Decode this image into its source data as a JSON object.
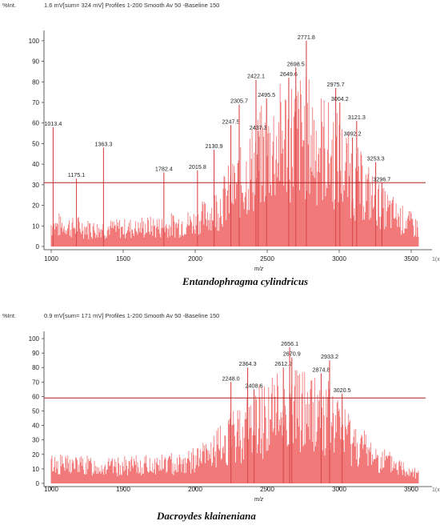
{
  "chart_data": [
    {
      "type": "line",
      "header": {
        "yunit": "%Int.",
        "info": "1.6 mV[sum= 324 mV]  Profiles 1-200 Smooth Av 50 -Baseline 150"
      },
      "xlabel": "m/z",
      "xlim": [
        950,
        3600
      ],
      "ylim": [
        0,
        105
      ],
      "x_ticks": [
        1000,
        1500,
        2000,
        2500,
        3000,
        3500
      ],
      "y_ticks": [
        0,
        10,
        20,
        30,
        40,
        50,
        60,
        70,
        80,
        90,
        100
      ],
      "axis_end_label": "1(x",
      "threshold_line": 31,
      "series_color": "#f06a6a",
      "threshold_color": "#b22222",
      "caption": "Entandophragma cylindricus",
      "envelope": {
        "x": [
          1000,
          1200,
          1400,
          1600,
          1800,
          2000,
          2100,
          2200,
          2300,
          2400,
          2500,
          2600,
          2700,
          2800,
          2900,
          3000,
          3100,
          3200,
          3300,
          3400,
          3550
        ],
        "y": [
          14,
          12,
          11,
          12,
          13,
          16,
          22,
          32,
          42,
          55,
          66,
          74,
          78,
          75,
          68,
          58,
          47,
          36,
          26,
          20,
          12
        ]
      },
      "peaks": [
        {
          "x": 1013.4,
          "y": 58,
          "label": "1013.4"
        },
        {
          "x": 1175.1,
          "y": 33,
          "label": "1175.1"
        },
        {
          "x": 1363.3,
          "y": 48,
          "label": "1363.3"
        },
        {
          "x": 1782.4,
          "y": 36,
          "label": "1782.4"
        },
        {
          "x": 2015.8,
          "y": 37,
          "label": "2015.8"
        },
        {
          "x": 2130.9,
          "y": 47,
          "label": "2130.9"
        },
        {
          "x": 2247.5,
          "y": 59,
          "label": "2247.5"
        },
        {
          "x": 2305.7,
          "y": 69,
          "label": "2305.7"
        },
        {
          "x": 2422.1,
          "y": 81,
          "label": "2422.1"
        },
        {
          "x": 2437.3,
          "y": 56,
          "label": "2437.3"
        },
        {
          "x": 2495.5,
          "y": 72,
          "label": "2495.5"
        },
        {
          "x": 2649.6,
          "y": 82,
          "label": "2649.6"
        },
        {
          "x": 2698.5,
          "y": 87,
          "label": "2698.5"
        },
        {
          "x": 2771.8,
          "y": 100,
          "label": "2771.8"
        },
        {
          "x": 2975.7,
          "y": 77,
          "label": "2975.7"
        },
        {
          "x": 3004.2,
          "y": 70,
          "label": "3004.2"
        },
        {
          "x": 3092.2,
          "y": 53,
          "label": "3092.2"
        },
        {
          "x": 3121.3,
          "y": 61,
          "label": "3121.3"
        },
        {
          "x": 3253.3,
          "y": 41,
          "label": "3253.3"
        },
        {
          "x": 3296.7,
          "y": 31,
          "label": "3296.7"
        }
      ]
    },
    {
      "type": "line",
      "header": {
        "yunit": "%Int.",
        "info": "0.9 mV[sum= 171 mV]  Profiles 1-200 Smooth Av 50 -Baseline 150"
      },
      "xlabel": "m/z",
      "xlim": [
        950,
        3600
      ],
      "ylim": [
        0,
        105
      ],
      "x_ticks": [
        1000,
        1500,
        2000,
        2500,
        3000,
        3500
      ],
      "y_ticks": [
        0,
        10,
        20,
        30,
        40,
        50,
        60,
        70,
        80,
        90,
        100
      ],
      "axis_end_label": "1(x",
      "threshold_line": 59,
      "series_color": "#f06a6a",
      "threshold_color": "#b22222",
      "caption": "Dacroydes klaineniana",
      "envelope": {
        "x": [
          1000,
          1200,
          1400,
          1600,
          1800,
          2000,
          2100,
          2200,
          2300,
          2400,
          2500,
          2600,
          2700,
          2800,
          2900,
          3000,
          3100,
          3200,
          3300,
          3400,
          3550
        ],
        "y": [
          18,
          17,
          15,
          16,
          18,
          22,
          28,
          38,
          50,
          60,
          68,
          72,
          74,
          72,
          66,
          55,
          42,
          30,
          22,
          16,
          10
        ]
      },
      "peaks": [
        {
          "x": 2248.0,
          "y": 70,
          "label": "2248.0"
        },
        {
          "x": 2364.3,
          "y": 80,
          "label": "2364.3"
        },
        {
          "x": 2408.6,
          "y": 65,
          "label": "2408.6"
        },
        {
          "x": 2612.2,
          "y": 80,
          "label": "2612.2"
        },
        {
          "x": 2656.1,
          "y": 94,
          "label": "2656.1"
        },
        {
          "x": 2670.9,
          "y": 87,
          "label": "2670.9"
        },
        {
          "x": 2874.8,
          "y": 76,
          "label": "2874.8"
        },
        {
          "x": 2933.2,
          "y": 85,
          "label": "2933.2"
        },
        {
          "x": 3020.5,
          "y": 62,
          "label": "3020.5"
        }
      ]
    }
  ]
}
